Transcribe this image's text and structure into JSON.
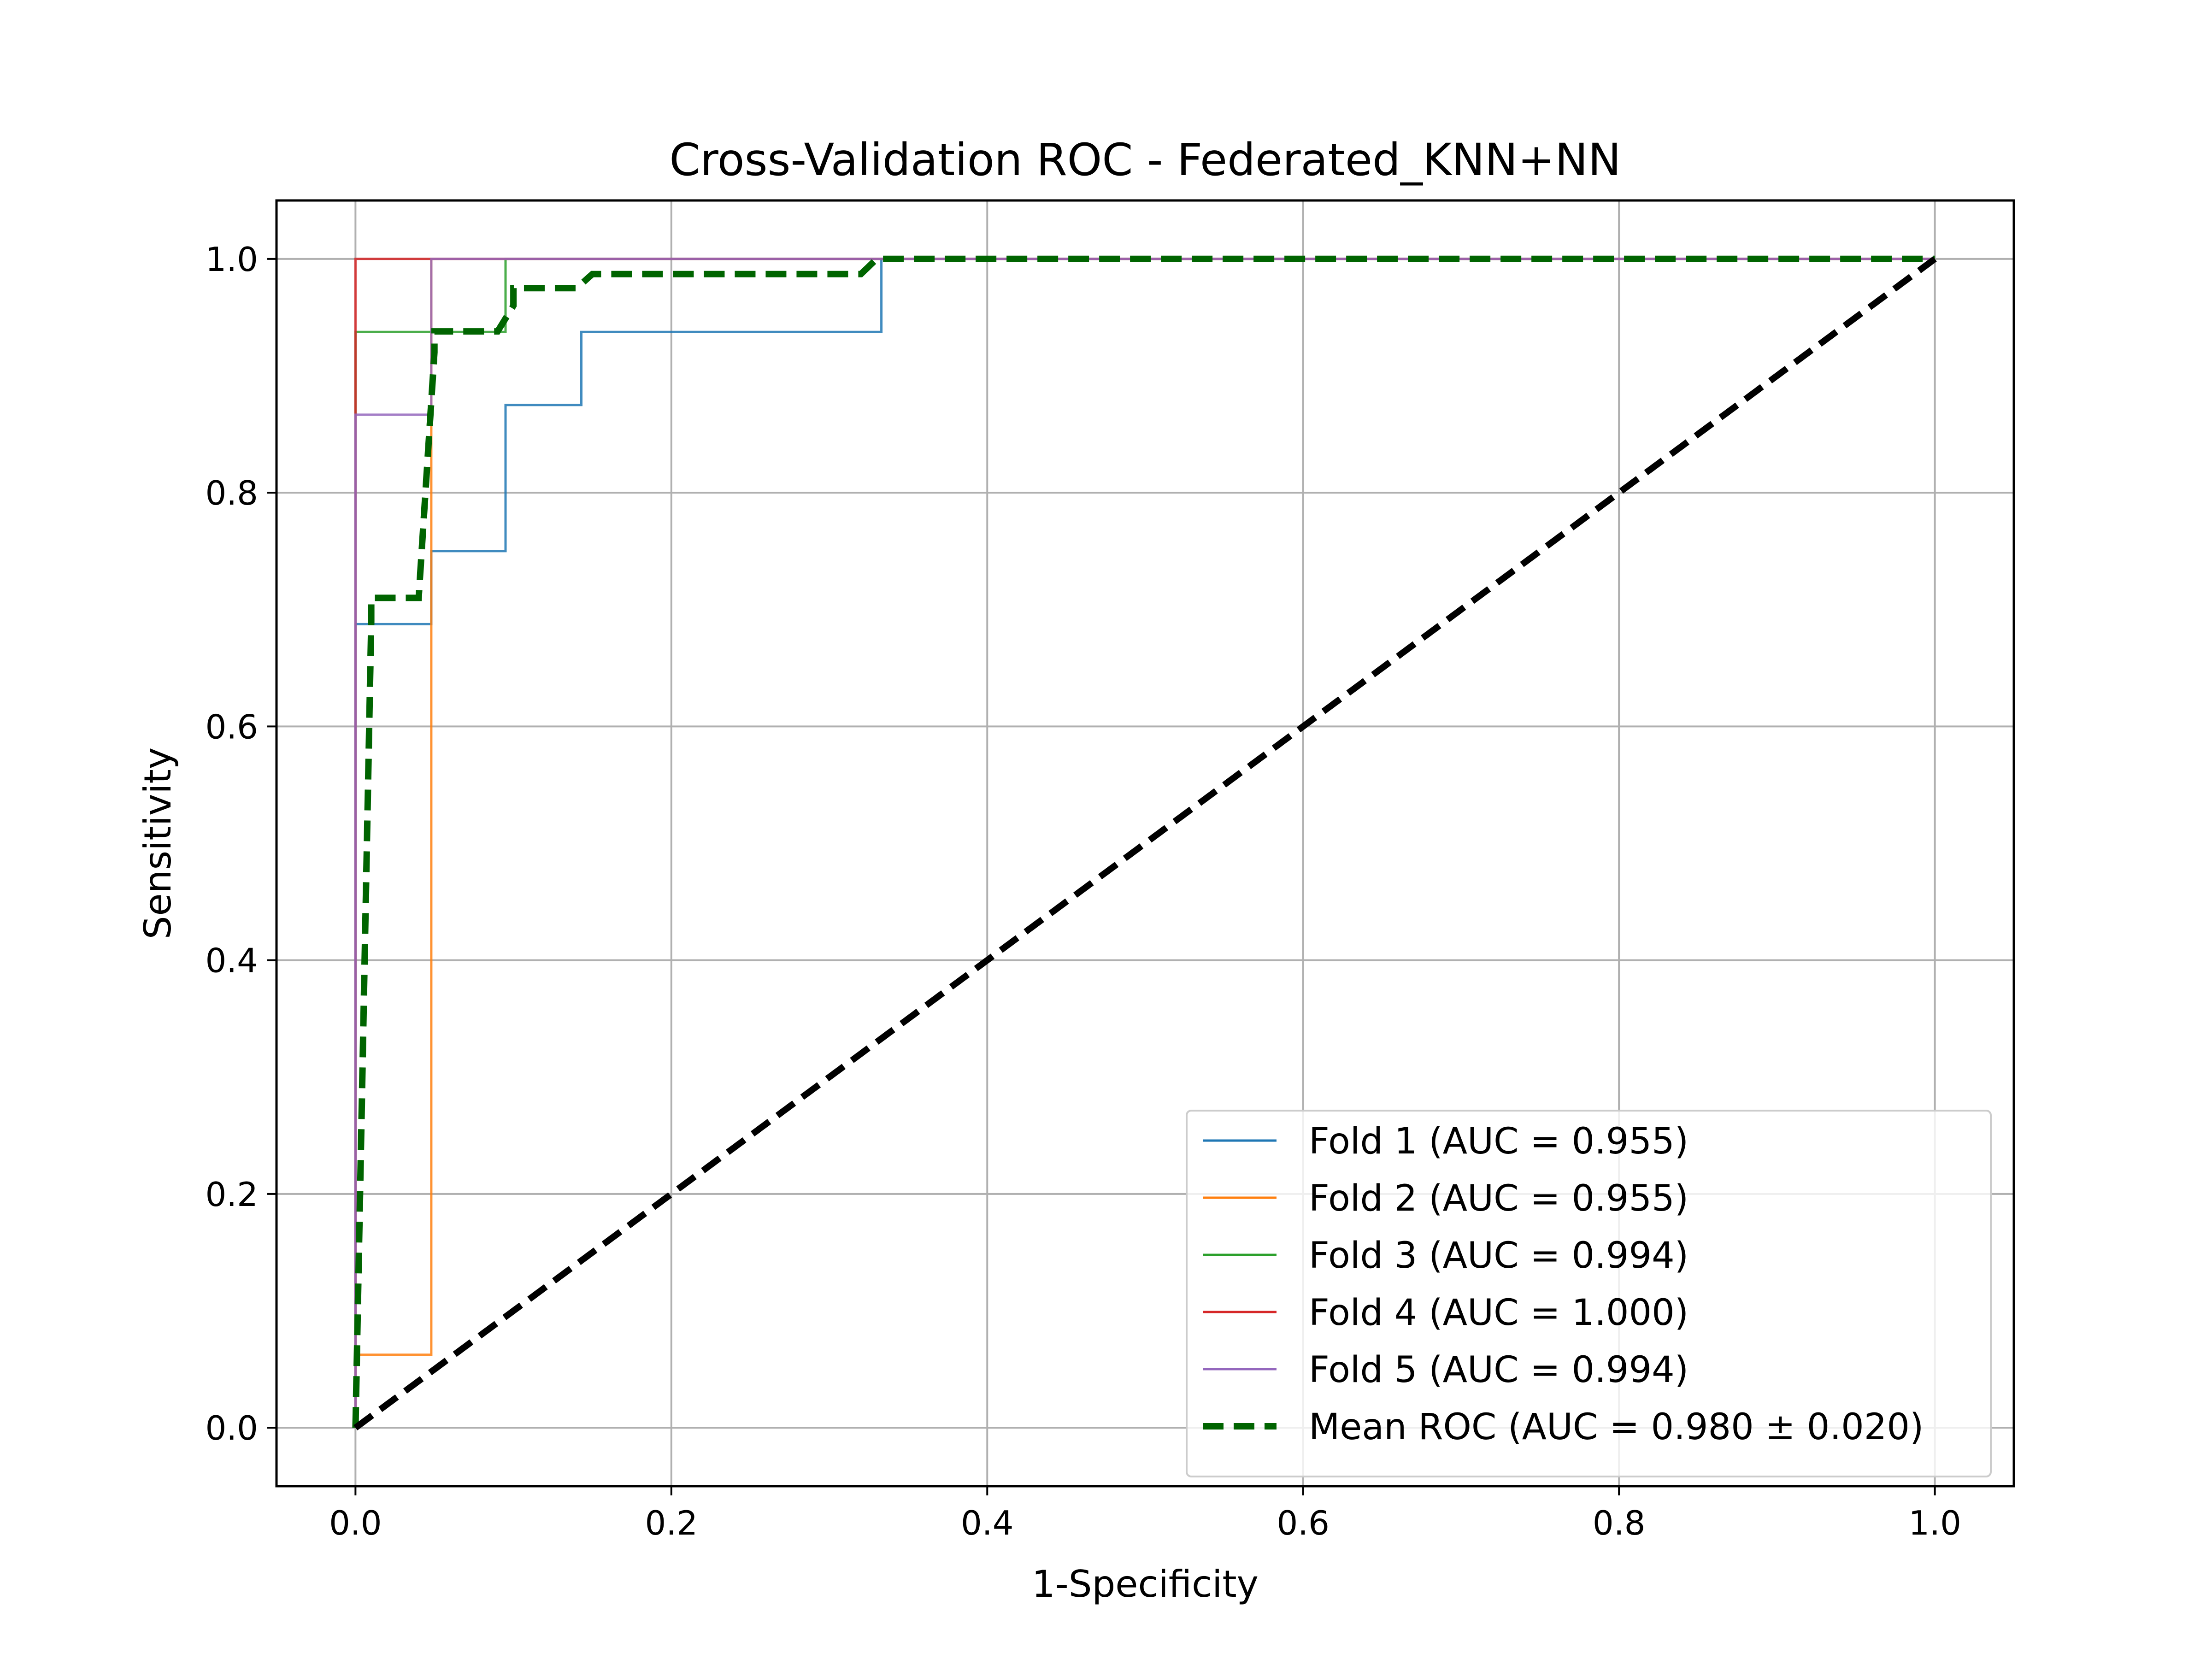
{
  "chart_data": {
    "type": "line",
    "title": "Cross-Validation ROC - Federated_KNN+NN",
    "xlabel": "1-Specificity",
    "ylabel": "Sensitivity",
    "xlim": [
      -0.05,
      1.05
    ],
    "ylim": [
      -0.05,
      1.05
    ],
    "xticks": [
      "0.0",
      "0.2",
      "0.4",
      "0.6",
      "0.8",
      "1.0"
    ],
    "yticks": [
      "0.0",
      "0.2",
      "0.4",
      "0.6",
      "0.8",
      "1.0"
    ],
    "grid": true,
    "legend_position": "lower-right",
    "series": [
      {
        "name": "Fold 1 (AUC = 0.955)",
        "color": "#1f77b4",
        "style": "solid",
        "x": [
          0,
          0,
          0.048,
          0.048,
          0.095,
          0.095,
          0.143,
          0.143,
          0.333,
          0.333,
          1.0
        ],
        "y": [
          0,
          0.6875,
          0.6875,
          0.75,
          0.75,
          0.875,
          0.875,
          0.9375,
          0.9375,
          1.0,
          1.0
        ]
      },
      {
        "name": "Fold 2 (AUC = 0.955)",
        "color": "#ff7f0e",
        "style": "solid",
        "x": [
          0,
          0,
          0.048,
          0.048,
          1.0
        ],
        "y": [
          0,
          0.0625,
          0.0625,
          1.0,
          1.0
        ]
      },
      {
        "name": "Fold 3 (AUC = 0.994)",
        "color": "#2ca02c",
        "style": "solid",
        "x": [
          0,
          0,
          0.095,
          0.095,
          1.0
        ],
        "y": [
          0,
          0.9375,
          0.9375,
          1.0,
          1.0
        ]
      },
      {
        "name": "Fold 4 (AUC = 1.000)",
        "color": "#d62728",
        "style": "solid",
        "x": [
          0,
          0,
          1.0
        ],
        "y": [
          0,
          1.0,
          1.0
        ]
      },
      {
        "name": "Fold 5 (AUC = 0.994)",
        "color": "#9467bd",
        "style": "solid",
        "x": [
          0,
          0,
          0.048,
          0.048,
          1.0
        ],
        "y": [
          0,
          0.8667,
          0.8667,
          1.0,
          1.0
        ]
      },
      {
        "name": "Mean ROC (AUC = 0.980 ± 0.020)",
        "color": "#006400",
        "style": "dashed",
        "x": [
          0,
          0.01,
          0.01,
          0.04,
          0.05,
          0.05,
          0.09,
          0.1,
          0.1,
          0.14,
          0.15,
          0.32,
          0.33,
          1.0
        ],
        "y": [
          0,
          0.69,
          0.71,
          0.71,
          0.92,
          0.938,
          0.938,
          0.96,
          0.975,
          0.975,
          0.987,
          0.987,
          1.0,
          1.0
        ]
      },
      {
        "name": "",
        "color": "#000000",
        "style": "dashed",
        "x": [
          0,
          1
        ],
        "y": [
          0,
          1
        ]
      }
    ]
  }
}
